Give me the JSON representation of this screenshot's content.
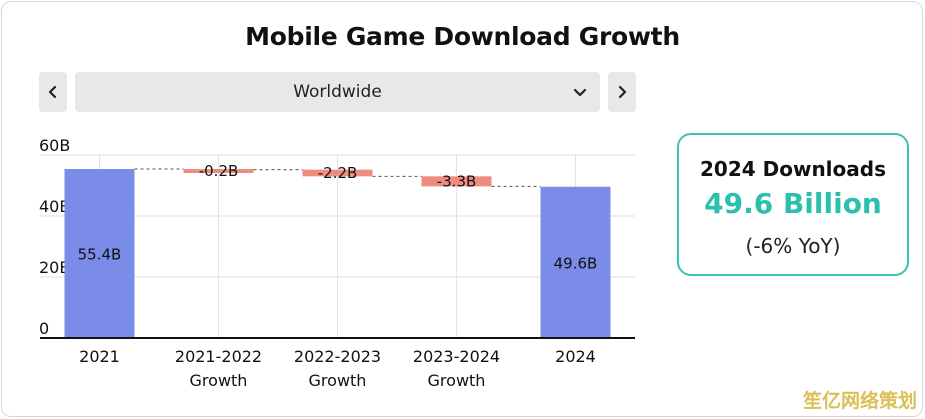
{
  "title": "Mobile Game Download Growth",
  "selector": {
    "prev_icon": "chevron-left-icon",
    "next_icon": "chevron-right-icon",
    "dropdown_icon": "chevron-down-icon",
    "selected": "Worldwide"
  },
  "kpi": {
    "label": "2024 Downloads",
    "value": "49.6 Billion",
    "change": "(-6% YoY)"
  },
  "watermark": "笙亿网络策划",
  "colors": {
    "total_bar": "#7b8ce8",
    "decrease_bar": "#ee8c80",
    "accent": "#2bbfae",
    "kpi_border": "#3cc2b5"
  },
  "chart_data": {
    "type": "bar",
    "subtype": "waterfall",
    "categories": [
      [
        "2021"
      ],
      [
        "2021-2022",
        "Growth"
      ],
      [
        "2022-2023",
        "Growth"
      ],
      [
        "2023-2024",
        "Growth"
      ],
      [
        "2024"
      ]
    ],
    "bars": [
      {
        "kind": "total",
        "start": 0,
        "end": 55.4,
        "label": "55.4B"
      },
      {
        "kind": "delta",
        "start": 55.4,
        "end": 55.2,
        "label": "-0.2B"
      },
      {
        "kind": "delta",
        "start": 55.2,
        "end": 53.0,
        "label": "-2.2B"
      },
      {
        "kind": "delta",
        "start": 53.0,
        "end": 49.7,
        "label": "-3.3B"
      },
      {
        "kind": "total",
        "start": 0,
        "end": 49.6,
        "label": "49.6B"
      }
    ],
    "y_ticks": [
      {
        "value": 0,
        "label": "0"
      },
      {
        "value": 20,
        "label": "20B"
      },
      {
        "value": 40,
        "label": "40B"
      },
      {
        "value": 60,
        "label": "60B"
      }
    ],
    "ylim": [
      0,
      60
    ],
    "grid": true,
    "connectors": true,
    "xlabel": "",
    "ylabel": ""
  }
}
